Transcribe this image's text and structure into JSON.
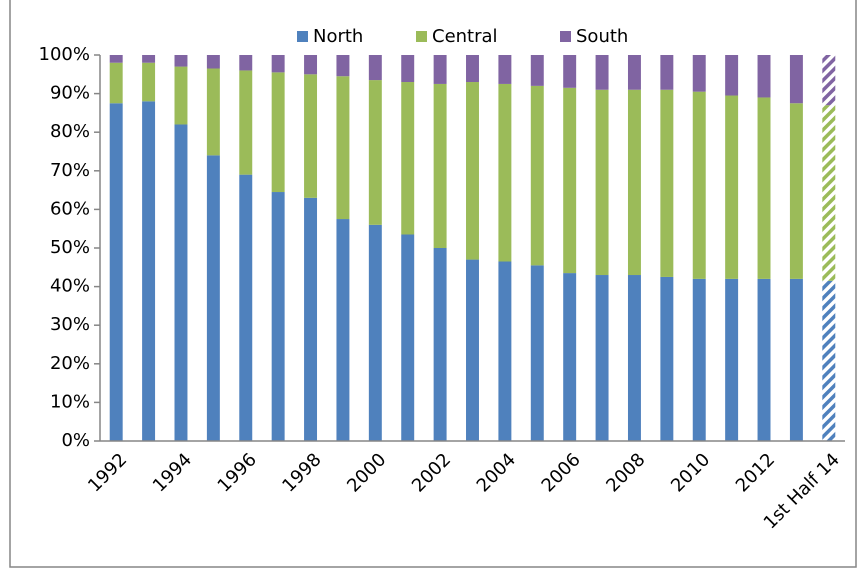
{
  "chart_data": {
    "type": "stacked_bar",
    "categories": [
      "1992",
      null,
      "1994",
      null,
      "1996",
      null,
      "1998",
      null,
      "2000",
      null,
      "2002",
      null,
      "2004",
      null,
      "2006",
      null,
      "2008",
      null,
      "2010",
      null,
      "2012",
      null,
      "1st Half 14"
    ],
    "series": [
      {
        "name": "North",
        "color": "#4f81bd",
        "values": [
          87.5,
          88,
          82,
          74,
          69,
          64.5,
          63,
          57.5,
          56,
          53.5,
          50,
          47,
          46.5,
          45.5,
          43.5,
          43,
          43,
          42.5,
          42,
          42,
          42,
          42,
          41.5
        ]
      },
      {
        "name": "Central",
        "color": "#9bbb59",
        "values": [
          10.5,
          10,
          15,
          22.5,
          27,
          31,
          32,
          37,
          37.5,
          39.5,
          42.5,
          46,
          46,
          46.5,
          48,
          48,
          48,
          48.5,
          48.5,
          47.5,
          47,
          45.5,
          45.5
        ]
      },
      {
        "name": "South",
        "color": "#8064a2",
        "values": [
          2,
          2,
          3,
          3.5,
          4,
          4.5,
          5,
          5.5,
          6.5,
          7,
          7.5,
          7,
          7.5,
          8,
          8.5,
          9,
          9,
          9,
          9.5,
          10.5,
          11,
          12.5,
          13
        ]
      }
    ],
    "ylim": [
      0,
      100
    ],
    "yticks": [
      {
        "value": 0,
        "label": "0%"
      },
      {
        "value": 10,
        "label": "10%"
      },
      {
        "value": 20,
        "label": "20%"
      },
      {
        "value": 30,
        "label": "30%"
      },
      {
        "value": 40,
        "label": "40%"
      },
      {
        "value": 50,
        "label": "50%"
      },
      {
        "value": 60,
        "label": "60%"
      },
      {
        "value": 70,
        "label": "70%"
      },
      {
        "value": 80,
        "label": "80%"
      },
      {
        "value": 90,
        "label": "90%"
      },
      {
        "value": 100,
        "label": "100%"
      }
    ],
    "legend": "top",
    "hatched_last": true,
    "grid": false
  }
}
